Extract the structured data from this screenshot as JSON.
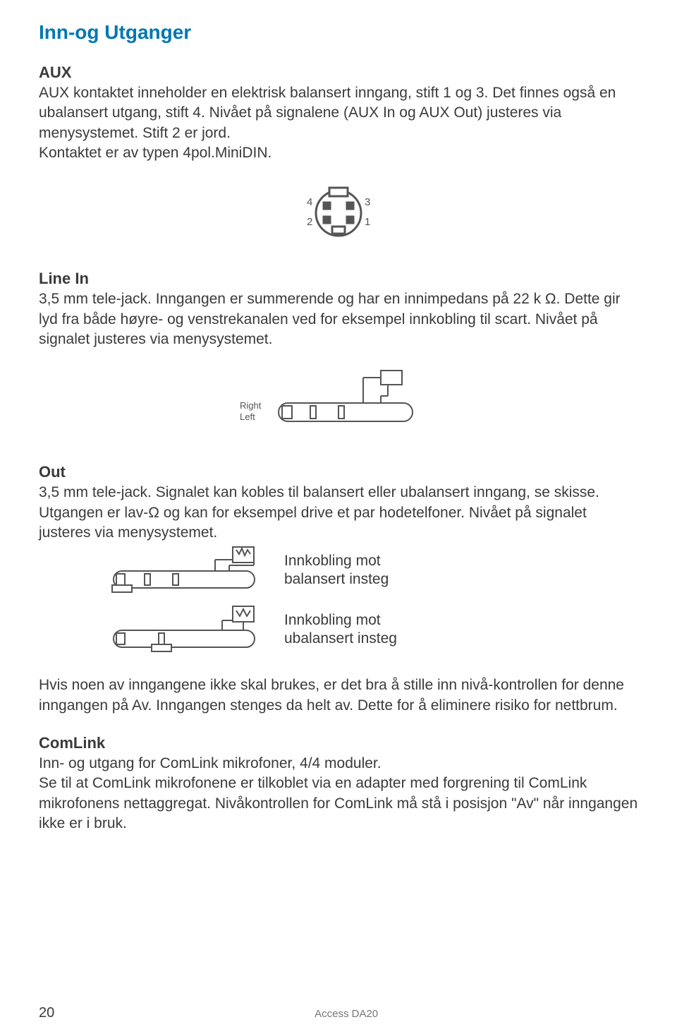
{
  "page": {
    "title": "Inn-og Utganger",
    "number": "20",
    "product": "Access DA20"
  },
  "aux": {
    "heading": "AUX",
    "text": "AUX kontaktet inneholder en elektrisk balansert inngang, stift 1 og 3. Det finnes også en ubalansert utgang, stift 4. Nivået på signalene (AUX In og AUX Out) justeres via menysystemet. Stift 2 er jord.\nKontaktet er av typen 4pol.MiniDIN.",
    "pinLabels": {
      "tl": "4",
      "tr": "3",
      "bl": "2",
      "br": "1"
    }
  },
  "linein": {
    "heading": "Line In",
    "text": "3,5 mm tele-jack. Inngangen er summerende og har en innimpedans på 22 k Ω. Dette gir lyd fra både høyre- og venstrekanalen ved for eksempel innkobling til scart. Nivået på signalet justeres via menysystemet.",
    "labels": {
      "right": "Right",
      "left": "Left"
    }
  },
  "out": {
    "heading": "Out",
    "text": "3,5 mm tele-jack. Signalet kan kobles til balansert eller ubalansert inngang, se skisse. Utgangen er lav-Ω og kan for eksempel drive et par hodetelfoner. Nivået på signalet justeres via menysystemet.",
    "caption1": "Innkobling mot\nbalansert insteg",
    "caption2": "Innkobling mot\nubalansert insteg"
  },
  "note": {
    "text": "Hvis noen av inngangene ikke skal brukes, er det bra å stille inn nivå-kontrollen for denne inngangen på Av. Inngangen stenges da helt av. Dette for å eliminere risiko for nettbrum."
  },
  "comlink": {
    "heading": "ComLink",
    "text": "Inn- og utgang for ComLink mikrofoner, 4/4 moduler.\nSe til at ComLink mikrofonene er tilkoblet via en adapter med forgrening til ComLink mikrofonens nettaggregat. Nivåkontrollen for ComLink må stå i posisjon \"Av\" når inngangen ikke er i bruk."
  },
  "style": {
    "titleColor": "#0077b3",
    "textColor": "#3a3a3a",
    "diagramStroke": "#555555",
    "diagramFill": "#ffffff",
    "diagramBg": "#ffffff",
    "labelFont": 11
  }
}
